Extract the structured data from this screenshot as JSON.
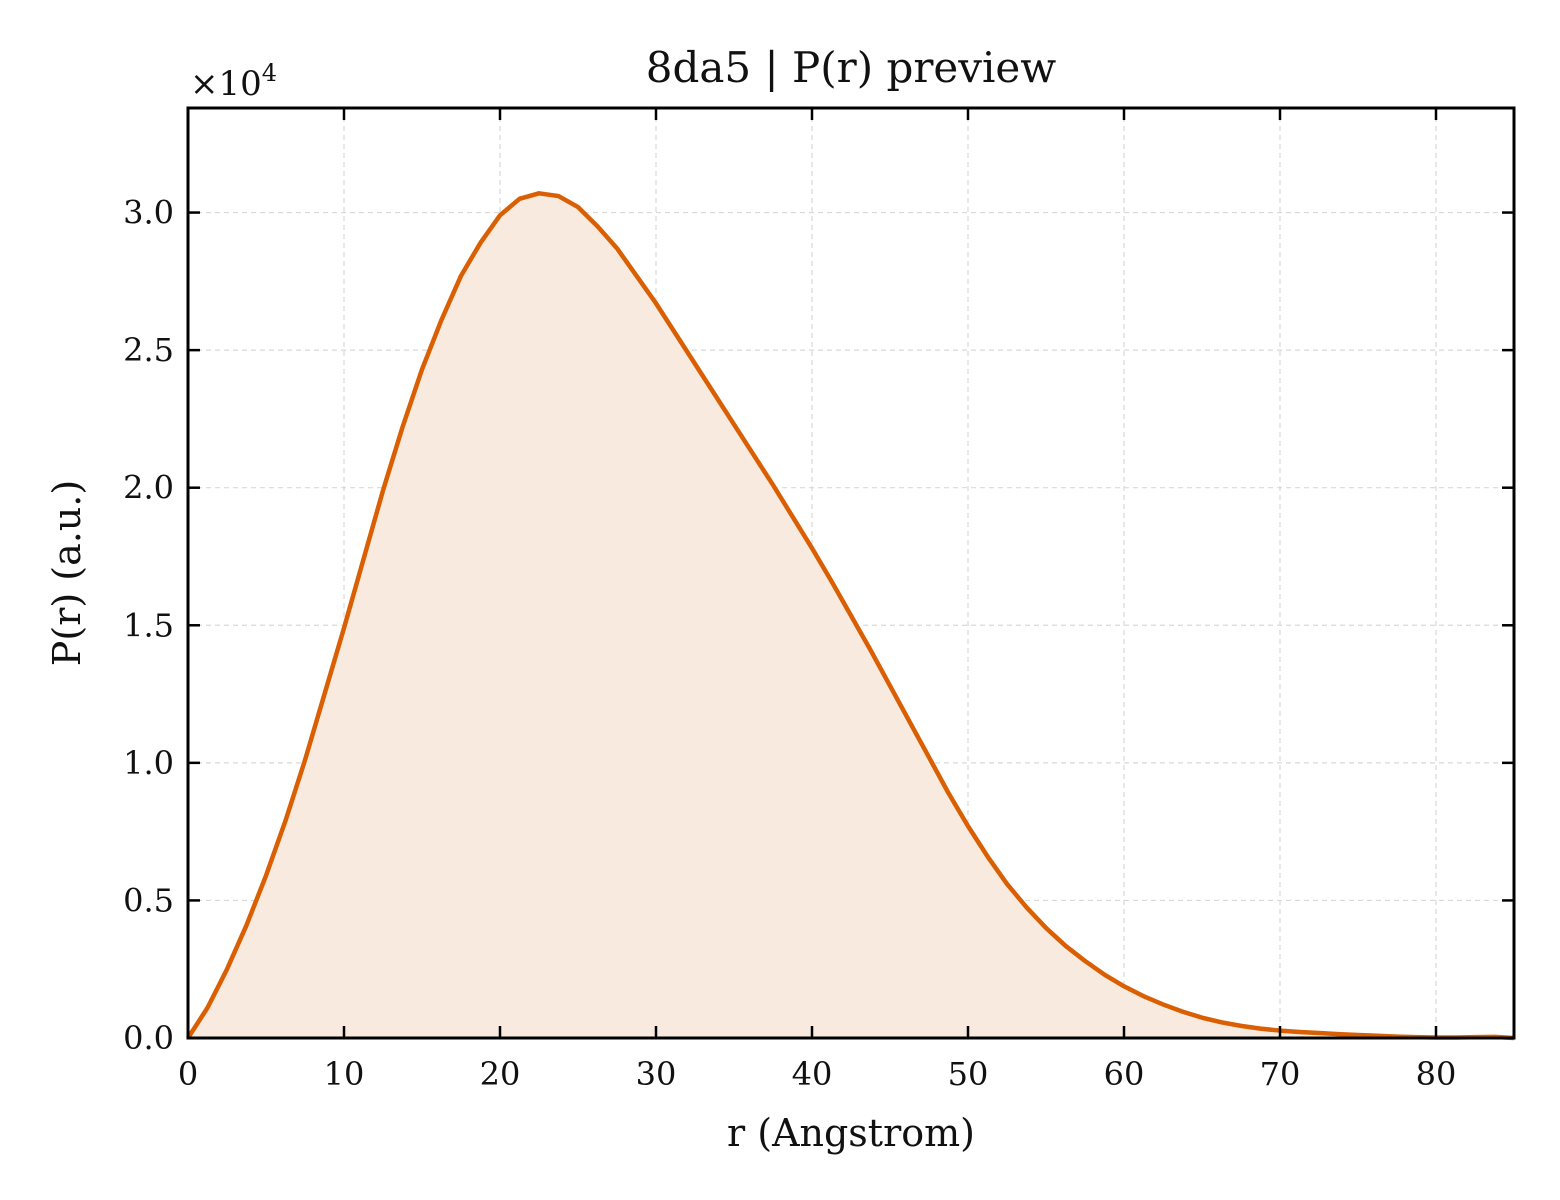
{
  "chart_data": {
    "type": "area",
    "title": "8da5 | P(r) preview",
    "xlabel": "r (Angstrom)",
    "ylabel": "P(r) (a.u.)",
    "y_offset_label_base": "×10",
    "y_offset_label_exp": "4",
    "xlim": [
      0,
      85
    ],
    "ylim": [
      0,
      33800
    ],
    "x_ticks": [
      0,
      10,
      20,
      30,
      40,
      50,
      60,
      70,
      80
    ],
    "x_tick_labels": [
      "0",
      "10",
      "20",
      "30",
      "40",
      "50",
      "60",
      "70",
      "80"
    ],
    "y_ticks": [
      0,
      5000,
      10000,
      15000,
      20000,
      25000,
      30000
    ],
    "y_tick_labels": [
      "0.0",
      "0.5",
      "1.0",
      "1.5",
      "2.0",
      "2.5",
      "3.0"
    ],
    "grid": true,
    "colors": {
      "line": "#d95f02",
      "fill": "#f9eadf",
      "grid": "#d9d9d9",
      "axes": "#000000"
    },
    "series": [
      {
        "x": [
          0,
          1.25,
          2.5,
          3.75,
          5,
          6.25,
          7.5,
          8.75,
          10,
          11.25,
          12.5,
          13.75,
          15,
          16.25,
          17.5,
          18.75,
          20,
          21.25,
          22.5,
          23.75,
          25,
          26.25,
          27.5,
          28.75,
          30,
          31.25,
          32.5,
          33.75,
          35,
          36.25,
          37.5,
          38.75,
          40,
          41.25,
          42.5,
          43.75,
          45,
          46.25,
          47.5,
          48.75,
          50,
          51.25,
          52.5,
          53.75,
          55,
          56.25,
          57.5,
          58.75,
          60,
          61.25,
          62.5,
          63.75,
          65,
          66.25,
          67.5,
          68.75,
          70,
          71.25,
          72.5,
          73.75,
          75,
          76.25,
          77.5,
          78.75,
          80,
          81.25,
          82.5,
          83.75,
          85
        ],
        "y": [
          0,
          1100,
          2500,
          4100,
          5900,
          7900,
          10100,
          12500,
          14900,
          17400,
          19900,
          22200,
          24300,
          26100,
          27700,
          28900,
          29900,
          30500,
          30700,
          30600,
          30200,
          29500,
          28700,
          27700,
          26700,
          25600,
          24500,
          23400,
          22300,
          21200,
          20100,
          18950,
          17800,
          16600,
          15350,
          14100,
          12800,
          11500,
          10200,
          8900,
          7700,
          6600,
          5600,
          4750,
          4000,
          3350,
          2800,
          2300,
          1880,
          1520,
          1220,
          960,
          740,
          570,
          440,
          340,
          270,
          220,
          180,
          140,
          110,
          80,
          50,
          30,
          20,
          20,
          30,
          40,
          0
        ]
      }
    ]
  }
}
